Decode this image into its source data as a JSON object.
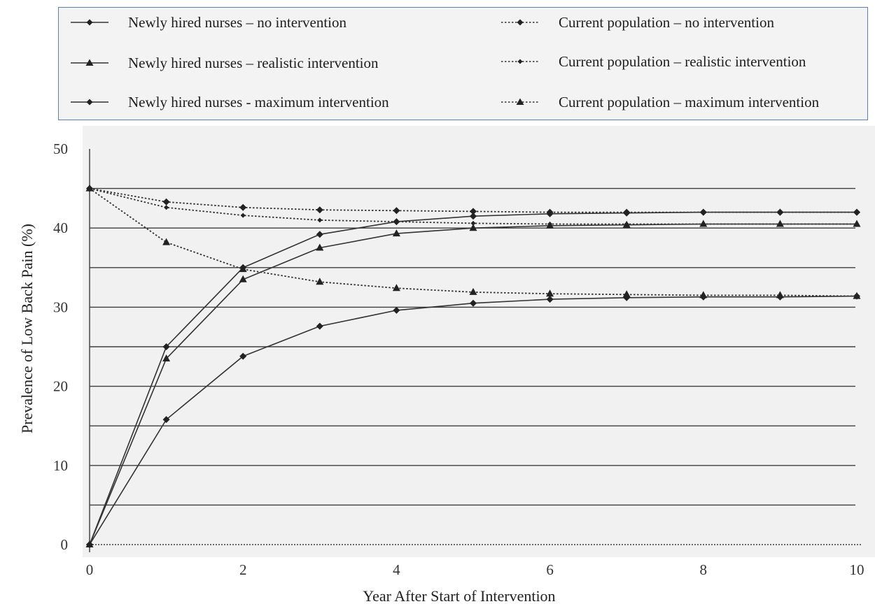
{
  "chart_data": {
    "type": "line",
    "xlabel": "Year After Start of Intervention",
    "ylabel": "Prevalence of Low Back Pain (%)",
    "xlim": [
      0,
      10
    ],
    "ylim": [
      0,
      50
    ],
    "x_ticks": [
      "0",
      "2",
      "4",
      "6",
      "8",
      "10"
    ],
    "y_ticks": [
      "0",
      "10",
      "20",
      "30",
      "40",
      "50"
    ],
    "grid": "horizontal every 5",
    "legend_position": "top",
    "x": [
      0,
      1,
      2,
      3,
      4,
      5,
      6,
      7,
      8,
      9,
      10
    ],
    "series": [
      {
        "name": "Newly hired nurses – no intervention",
        "style": "solid",
        "marker": "diamond",
        "values": [
          0,
          25.0,
          35.0,
          39.2,
          40.8,
          41.5,
          41.8,
          41.9,
          42.0,
          42.0,
          42.0
        ]
      },
      {
        "name": "Newly hired nurses – realistic intervention",
        "style": "solid",
        "marker": "triangle",
        "values": [
          0,
          23.5,
          33.5,
          37.5,
          39.3,
          40.0,
          40.3,
          40.4,
          40.5,
          40.5,
          40.5
        ]
      },
      {
        "name": "Newly hired nurses - maximum intervention",
        "style": "solid",
        "marker": "diamond",
        "values": [
          0,
          15.8,
          23.8,
          27.6,
          29.6,
          30.5,
          31.0,
          31.2,
          31.3,
          31.3,
          31.4
        ]
      },
      {
        "name": "Current population – no intervention",
        "style": "dotted",
        "marker": "diamond",
        "values": [
          45,
          43.3,
          42.6,
          42.3,
          42.2,
          42.1,
          42.0,
          42.0,
          42.0,
          42.0,
          42.0
        ]
      },
      {
        "name": "Current population – realistic intervention",
        "style": "dotted",
        "marker": "diamond",
        "values": [
          45,
          42.6,
          41.6,
          41.0,
          40.8,
          40.6,
          40.5,
          40.5,
          40.5,
          40.5,
          40.5
        ]
      },
      {
        "name": "Current population – maximum intervention",
        "style": "dotted",
        "marker": "triangle",
        "values": [
          45,
          38.2,
          34.8,
          33.2,
          32.4,
          31.9,
          31.7,
          31.6,
          31.5,
          31.5,
          31.4
        ]
      }
    ]
  }
}
